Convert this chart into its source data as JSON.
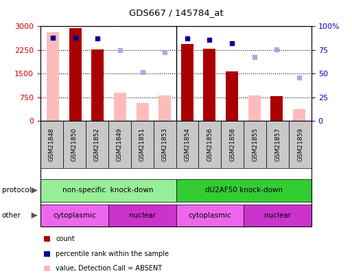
{
  "title": "GDS667 / 145784_at",
  "samples": [
    "GSM21848",
    "GSM21850",
    "GSM21852",
    "GSM21849",
    "GSM21851",
    "GSM21853",
    "GSM21854",
    "GSM21856",
    "GSM21858",
    "GSM21855",
    "GSM21857",
    "GSM21859"
  ],
  "counts": [
    0,
    2950,
    2260,
    0,
    0,
    0,
    2450,
    2300,
    1570,
    0,
    790,
    0
  ],
  "counts_absent": [
    2820,
    0,
    0,
    900,
    570,
    810,
    0,
    0,
    0,
    810,
    0,
    370
  ],
  "percentile_ranks": [
    88,
    88,
    87,
    null,
    null,
    null,
    87,
    86,
    82,
    null,
    null,
    null
  ],
  "percentile_ranks_absent": [
    null,
    null,
    null,
    75,
    52,
    73,
    null,
    null,
    null,
    68,
    76,
    46
  ],
  "ylim_left": [
    0,
    3000
  ],
  "ylim_right": [
    0,
    100
  ],
  "yticks_left": [
    0,
    750,
    1500,
    2250,
    3000
  ],
  "yticks_right": [
    0,
    25,
    50,
    75,
    100
  ],
  "protocol_groups": [
    {
      "label": "non-specific  knock-down",
      "start": 0,
      "end": 6,
      "color": "#99ee99"
    },
    {
      "label": "dU2AF50 knock-down",
      "start": 6,
      "end": 12,
      "color": "#33cc33"
    }
  ],
  "other_groups": [
    {
      "label": "cytoplasmic",
      "start": 0,
      "end": 3,
      "color": "#ee66ee"
    },
    {
      "label": "nuclear",
      "start": 3,
      "end": 6,
      "color": "#cc33cc"
    },
    {
      "label": "cytoplasmic",
      "start": 6,
      "end": 9,
      "color": "#ee66ee"
    },
    {
      "label": "nuclear",
      "start": 9,
      "end": 12,
      "color": "#cc33cc"
    }
  ],
  "bar_color_present": "#aa0000",
  "bar_color_absent": "#ffbbbb",
  "dot_color_present": "#000099",
  "dot_color_absent": "#aaaadd",
  "tick_label_fontsize": 6.5,
  "ytick_fontsize": 8,
  "axis_label_color_left": "#cc0000",
  "axis_label_color_right": "#0000cc",
  "sample_box_color": "#c8c8c8",
  "separator_col": 5,
  "n_samples": 12
}
